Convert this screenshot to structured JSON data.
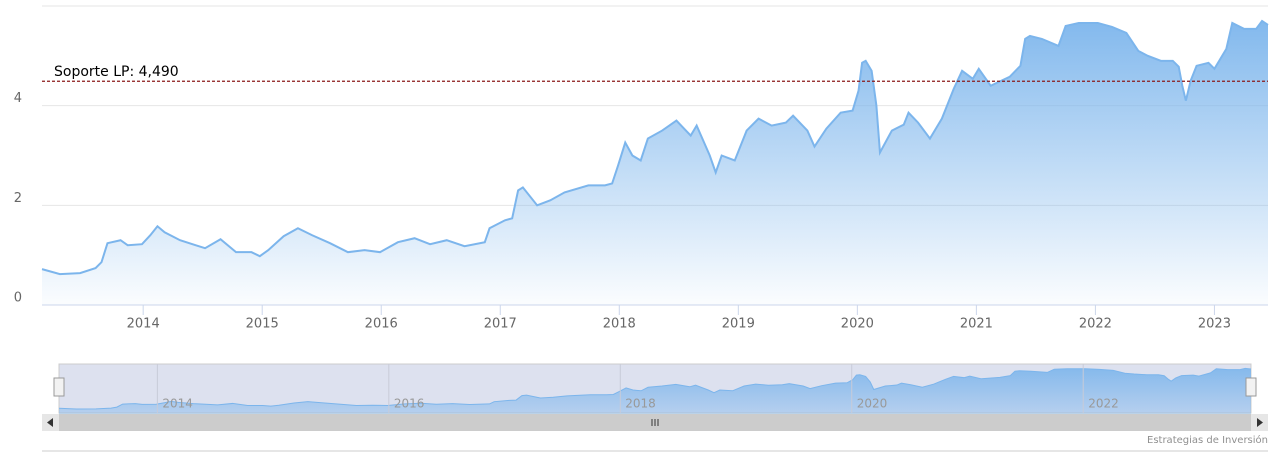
{
  "chart_data": {
    "type": "area",
    "x": [
      2013.15,
      2013.3,
      2013.47,
      2013.6,
      2013.65,
      2013.7,
      2013.81,
      2013.87,
      2013.99,
      2014.06,
      2014.12,
      2014.18,
      2014.31,
      2014.44,
      2014.52,
      2014.65,
      2014.78,
      2014.91,
      2014.98,
      2015.05,
      2015.18,
      2015.3,
      2015.42,
      2015.57,
      2015.72,
      2015.86,
      2015.99,
      2016.14,
      2016.28,
      2016.41,
      2016.55,
      2016.7,
      2016.87,
      2016.91,
      2017.04,
      2017.1,
      2017.15,
      2017.19,
      2017.31,
      2017.42,
      2017.54,
      2017.74,
      2017.88,
      2017.94,
      2017.99,
      2018.05,
      2018.11,
      2018.18,
      2018.24,
      2018.36,
      2018.48,
      2018.6,
      2018.65,
      2018.76,
      2018.81,
      2018.86,
      2018.97,
      2019.07,
      2019.17,
      2019.28,
      2019.4,
      2019.46,
      2019.58,
      2019.64,
      2019.74,
      2019.86,
      2019.96,
      2020.01,
      2020.04,
      2020.07,
      2020.12,
      2020.16,
      2020.19,
      2020.29,
      2020.39,
      2020.43,
      2020.51,
      2020.61,
      2020.71,
      2020.81,
      2020.88,
      2020.97,
      2021.02,
      2021.12,
      2021.28,
      2021.37,
      2021.41,
      2021.45,
      2021.55,
      2021.69,
      2021.75,
      2021.86,
      2022.02,
      2022.14,
      2022.26,
      2022.36,
      2022.44,
      2022.55,
      2022.65,
      2022.7,
      2022.73,
      2022.76,
      2022.8,
      2022.85,
      2022.95,
      2023.0,
      2023.1,
      2023.15,
      2023.25,
      2023.35,
      2023.4,
      2023.45
    ],
    "series": [
      {
        "color": "#7cb5ec",
        "values": [
          0.72,
          0.62,
          0.64,
          0.74,
          0.86,
          1.24,
          1.3,
          1.2,
          1.22,
          1.4,
          1.58,
          1.46,
          1.3,
          1.2,
          1.14,
          1.32,
          1.06,
          1.06,
          0.98,
          1.1,
          1.38,
          1.54,
          1.4,
          1.24,
          1.06,
          1.1,
          1.06,
          1.26,
          1.34,
          1.22,
          1.3,
          1.18,
          1.26,
          1.54,
          1.7,
          1.74,
          2.3,
          2.36,
          2.0,
          2.1,
          2.26,
          2.4,
          2.4,
          2.44,
          2.8,
          3.26,
          3.0,
          2.9,
          3.34,
          3.5,
          3.7,
          3.4,
          3.6,
          3.0,
          2.66,
          3.0,
          2.9,
          3.5,
          3.74,
          3.6,
          3.66,
          3.8,
          3.5,
          3.18,
          3.54,
          3.86,
          3.9,
          4.3,
          4.86,
          4.9,
          4.7,
          4.0,
          3.06,
          3.5,
          3.62,
          3.86,
          3.66,
          3.34,
          3.74,
          4.34,
          4.7,
          4.54,
          4.74,
          4.4,
          4.58,
          4.8,
          5.34,
          5.4,
          5.34,
          5.2,
          5.6,
          5.66,
          5.66,
          5.58,
          5.46,
          5.1,
          5.0,
          4.9,
          4.9,
          4.78,
          4.4,
          4.1,
          4.5,
          4.8,
          4.86,
          4.74,
          5.14,
          5.66,
          5.54,
          5.54,
          5.7,
          5.62
        ]
      }
    ],
    "xlim": [
      2013.15,
      2023.45
    ],
    "xticks": [
      2014,
      2015,
      2016,
      2017,
      2018,
      2019,
      2020,
      2021,
      2022,
      2023
    ],
    "ylim": [
      0,
      6
    ],
    "yticks": [
      0,
      2,
      4
    ],
    "grid": true,
    "plot_line": {
      "value": 4.49,
      "label": "Soporte LP: 4,490",
      "color": "#8b1a1a"
    },
    "navigator": {
      "xticks": [
        2014,
        2016,
        2018,
        2020,
        2022
      ]
    },
    "credit": "Estrategias de Inversión"
  }
}
